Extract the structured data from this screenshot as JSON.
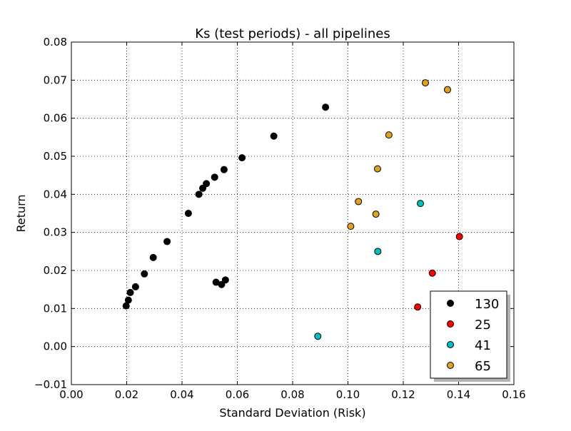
{
  "chart_data": {
    "type": "scatter",
    "title": "Ks (test periods) - all pipelines",
    "xlabel": "Standard Deviation (Risk)",
    "ylabel": "Return",
    "xlim": [
      0.0,
      0.16
    ],
    "ylim": [
      -0.01,
      0.08
    ],
    "xticks": [
      "0.00",
      "0.02",
      "0.04",
      "0.06",
      "0.08",
      "0.10",
      "0.12",
      "0.14",
      "0.16"
    ],
    "yticks": [
      "−0.01",
      "0.00",
      "0.01",
      "0.02",
      "0.03",
      "0.04",
      "0.05",
      "0.06",
      "0.07",
      "0.08"
    ],
    "grid": true,
    "legend_position": "lower-right",
    "series": [
      {
        "name": "130",
        "color": "#000000",
        "points": [
          [
            0.0198,
            0.0107
          ],
          [
            0.0206,
            0.0122
          ],
          [
            0.0213,
            0.0142
          ],
          [
            0.0232,
            0.0157
          ],
          [
            0.0264,
            0.0191
          ],
          [
            0.0296,
            0.0234
          ],
          [
            0.0346,
            0.0276
          ],
          [
            0.0423,
            0.035
          ],
          [
            0.0461,
            0.04
          ],
          [
            0.0475,
            0.0416
          ],
          [
            0.0488,
            0.0428
          ],
          [
            0.0518,
            0.0445
          ],
          [
            0.0552,
            0.0465
          ],
          [
            0.0617,
            0.0496
          ],
          [
            0.0732,
            0.0553
          ],
          [
            0.0919,
            0.0629
          ],
          [
            0.0523,
            0.0169
          ],
          [
            0.0543,
            0.0163
          ],
          [
            0.0557,
            0.0175
          ]
        ]
      },
      {
        "name": "25",
        "color": "#ff0000",
        "points": [
          [
            0.1252,
            0.0104
          ],
          [
            0.1305,
            0.0193
          ],
          [
            0.1403,
            0.0289
          ]
        ]
      },
      {
        "name": "41",
        "color": "#00bfbf",
        "points": [
          [
            0.0891,
            0.0027
          ],
          [
            0.1108,
            0.025
          ],
          [
            0.1262,
            0.0376
          ]
        ]
      },
      {
        "name": "65",
        "color": "#e0a020",
        "points": [
          [
            0.101,
            0.0316
          ],
          [
            0.1038,
            0.0381
          ],
          [
            0.1101,
            0.0348
          ],
          [
            0.1107,
            0.0467
          ],
          [
            0.1148,
            0.0556
          ],
          [
            0.128,
            0.0693
          ],
          [
            0.136,
            0.0675
          ]
        ]
      }
    ]
  }
}
